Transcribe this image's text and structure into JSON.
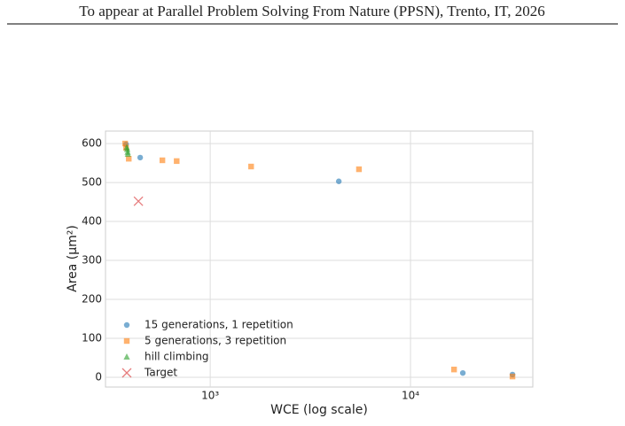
{
  "header": "To appear at Parallel Problem Solving From Nature (PPSN), Trento, IT, 2026",
  "chart_data": {
    "type": "scatter",
    "xlabel": "WCE  (log scale)",
    "ylabel": "Area (μm²)",
    "xscale": "log",
    "grid": true,
    "legend": "lower left",
    "xlim": [
      300,
      40800
    ],
    "ylim": [
      -25,
      632
    ],
    "xticks": [
      {
        "value": 1000,
        "label": "10³"
      },
      {
        "value": 10000,
        "label": "10⁴"
      }
    ],
    "yticks": [
      0,
      100,
      200,
      300,
      400,
      500,
      600
    ],
    "series": [
      {
        "name": "15 generations, 1 repetition",
        "color": "#1f77b4",
        "marker": "o",
        "x": [
          447,
          380,
          4385,
          18250,
          32300
        ],
        "y": [
          564,
          598,
          503,
          11,
          7
        ]
      },
      {
        "name": "5 generations, 3 repetition",
        "color": "#ff7f0e",
        "marker": "s",
        "x": [
          376,
          380,
          392,
          577,
          680,
          1600,
          5530,
          16500,
          32300
        ],
        "y": [
          600,
          589,
          561,
          557,
          555,
          541,
          534,
          20,
          2
        ]
      },
      {
        "name": "hill climbing",
        "color": "#2ca02c",
        "marker": "^",
        "x": [
          383,
          385,
          387,
          388
        ],
        "y": [
          590,
          585,
          578,
          573
        ]
      },
      {
        "name": "Target",
        "color": "#d62728",
        "marker": "x",
        "x": [
          438
        ],
        "y": [
          452
        ]
      }
    ]
  }
}
